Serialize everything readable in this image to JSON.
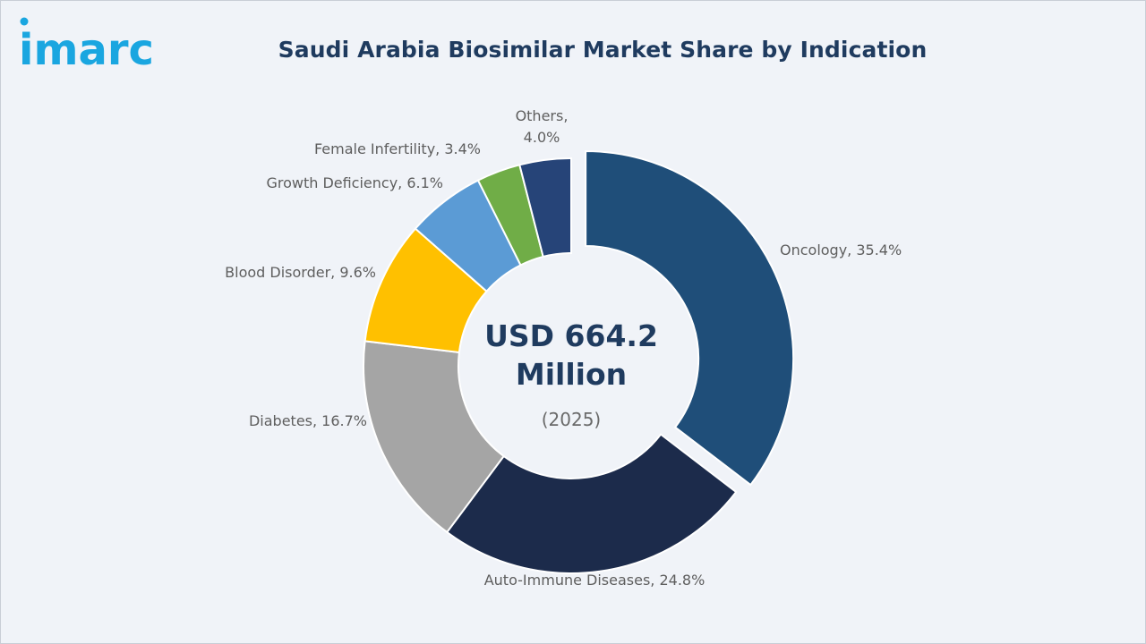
{
  "brand": {
    "logo_text": "imarc",
    "logo_color": "#1aa6e0"
  },
  "header": {
    "title": "Saudi Arabia Biosimilar Market Share by Indication"
  },
  "center": {
    "value_line1": "USD 664.2",
    "value_line2": "Million",
    "year": "(2025)"
  },
  "chart_data": {
    "type": "pie",
    "variant": "donut",
    "title": "Saudi Arabia Biosimilar Market Share by Indication",
    "total": "USD 664.2 Million",
    "year": "2025",
    "unit": "%",
    "categories": [
      "Oncology",
      "Auto-Immune Diseases",
      "Diabetes",
      "Blood Disorder",
      "Growth Deficiency",
      "Female Infertility",
      "Others"
    ],
    "values": [
      35.4,
      24.8,
      16.7,
      9.6,
      6.1,
      3.4,
      4.0
    ],
    "labels": [
      [
        "Oncology, 35.4%"
      ],
      [
        "Auto-Immune Diseases, 24.8%"
      ],
      [
        "Diabetes, 16.7%"
      ],
      [
        "Blood Disorder, 9.6%"
      ],
      [
        "Growth Deficiency, 6.1%"
      ],
      [
        "Female Infertility, 3.4%"
      ],
      [
        "Others,",
        "4.0%"
      ]
    ],
    "colors": [
      "#1f4e79",
      "#1c2b4b",
      "#a5a5a5",
      "#ffc000",
      "#5b9bd5",
      "#70ad47",
      "#264478"
    ],
    "exploded": [
      "Oncology"
    ]
  }
}
